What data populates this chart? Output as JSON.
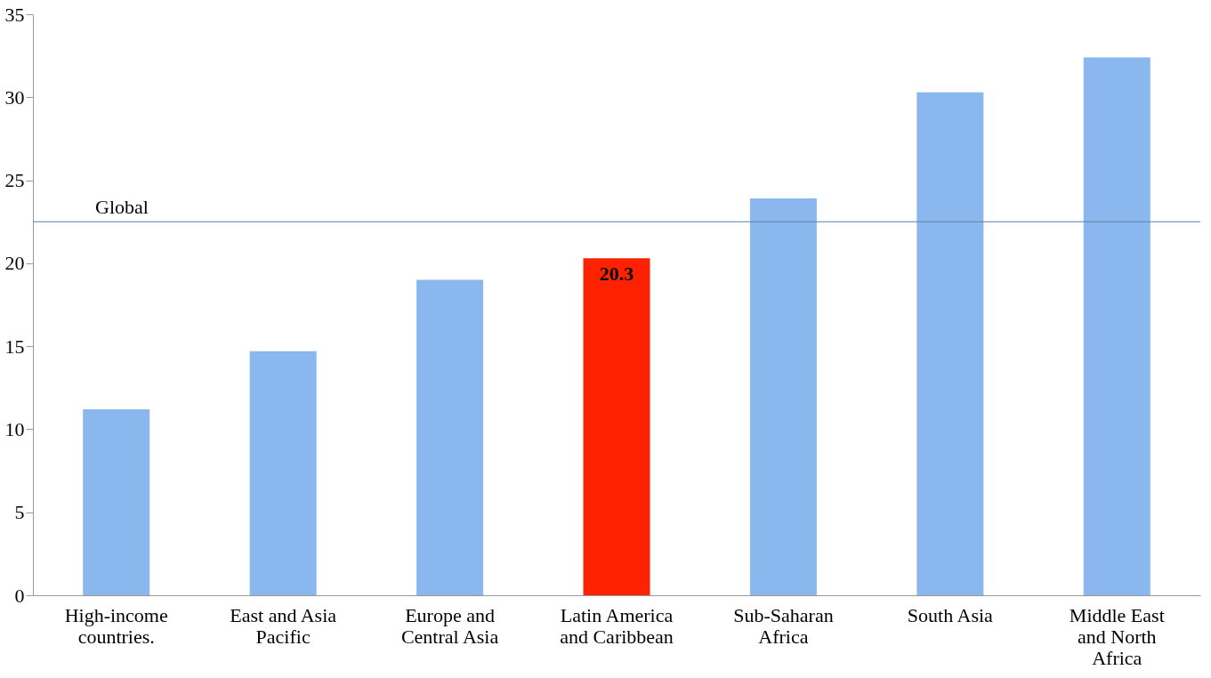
{
  "chart_data": {
    "type": "bar",
    "categories": [
      "High-income countries.",
      "East and Asia Pacific",
      "Europe and Central Asia",
      "Latin America and Caribbean",
      "Sub-Saharan Africa",
      "South Asia",
      "Middle East and North Africa"
    ],
    "values": [
      11.2,
      14.7,
      19.0,
      20.3,
      23.9,
      30.3,
      32.4
    ],
    "colors": [
      "#8ab8ee",
      "#8ab8ee",
      "#8ab8ee",
      "#ff2200",
      "#8ab8ee",
      "#8ab8ee",
      "#8ab8ee"
    ],
    "value_labels": [
      null,
      null,
      null,
      "20.3",
      null,
      null,
      null
    ],
    "ylim": [
      0,
      35
    ],
    "yticks": [
      0,
      5,
      10,
      15,
      20,
      25,
      30,
      35
    ],
    "ref_lines": [
      {
        "axis": "y",
        "value": 22.5,
        "label": "Global",
        "color": "#5b7fa8"
      }
    ],
    "grid": false
  }
}
